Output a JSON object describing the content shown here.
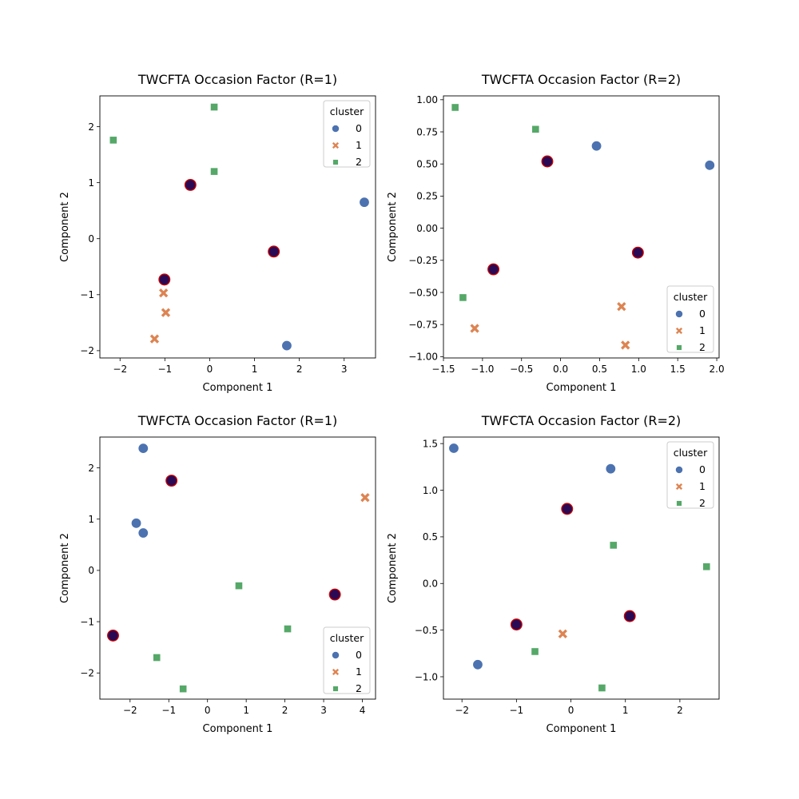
{
  "chart_data": [
    {
      "type": "scatter",
      "title": "TWCFTA Occasion Factor (R=1)",
      "xlabel": "Component 1",
      "ylabel": "Component 2",
      "xlim": [
        -2.45,
        3.7
      ],
      "ylim": [
        -2.13,
        2.55
      ],
      "xticks": [
        -2,
        -1,
        0,
        1,
        2,
        3
      ],
      "yticks": [
        -2,
        -1,
        0,
        1,
        2
      ],
      "xtick_labels": [
        "−2",
        "−1",
        "0",
        "1",
        "2",
        "3"
      ],
      "ytick_labels": [
        "−2",
        "−1",
        "0",
        "1",
        "2"
      ],
      "grid": false,
      "legend": {
        "title": "cluster",
        "placement": "upper right",
        "entries": [
          "0",
          "1",
          "2"
        ]
      },
      "series": [
        {
          "name": "0",
          "marker": "circle",
          "points": [
            [
              3.45,
              0.65
            ],
            [
              1.72,
              -1.91
            ]
          ]
        },
        {
          "name": "1",
          "marker": "x",
          "points": [
            [
              -1.03,
              -0.97
            ],
            [
              -0.98,
              -1.32
            ],
            [
              -1.23,
              -1.79
            ]
          ]
        },
        {
          "name": "2",
          "marker": "square",
          "points": [
            [
              -2.15,
              1.76
            ],
            [
              0.1,
              2.35
            ],
            [
              0.1,
              1.2
            ]
          ]
        }
      ],
      "highlighted": [
        [
          -0.43,
          0.96
        ],
        [
          1.43,
          -0.23
        ],
        [
          -1.01,
          -0.73
        ]
      ]
    },
    {
      "type": "scatter",
      "title": "TWCFTA Occasion Factor (R=2)",
      "xlabel": "Component 1",
      "ylabel": "Component 2",
      "xlim": [
        -1.5,
        2.03
      ],
      "ylim": [
        -1.01,
        1.03
      ],
      "xticks": [
        -1.5,
        -1.0,
        -0.5,
        0.0,
        0.5,
        1.0,
        1.5,
        2.0
      ],
      "yticks": [
        -1.0,
        -0.75,
        -0.5,
        -0.25,
        0.0,
        0.25,
        0.5,
        0.75,
        1.0
      ],
      "xtick_labels": [
        "−1.5",
        "−1.0",
        "−0.5",
        "0.0",
        "0.5",
        "1.0",
        "1.5",
        "2.0"
      ],
      "ytick_labels": [
        "−1.00",
        "−0.75",
        "−0.50",
        "−0.25",
        "0.00",
        "0.25",
        "0.50",
        "0.75",
        "1.00"
      ],
      "grid": false,
      "legend": {
        "title": "cluster",
        "placement": "lower right",
        "entries": [
          "0",
          "1",
          "2"
        ]
      },
      "series": [
        {
          "name": "0",
          "marker": "circle",
          "points": [
            [
              0.46,
              0.64
            ],
            [
              1.91,
              0.49
            ]
          ]
        },
        {
          "name": "1",
          "marker": "x",
          "points": [
            [
              0.78,
              -0.61
            ],
            [
              -1.1,
              -0.78
            ],
            [
              0.83,
              -0.91
            ]
          ]
        },
        {
          "name": "2",
          "marker": "square",
          "points": [
            [
              -1.35,
              0.94
            ],
            [
              -0.32,
              0.77
            ],
            [
              -1.25,
              -0.54
            ]
          ]
        }
      ],
      "highlighted": [
        [
          -0.17,
          0.52
        ],
        [
          0.99,
          -0.19
        ],
        [
          -0.86,
          -0.32
        ]
      ]
    },
    {
      "type": "scatter",
      "title": "TWFCTA Occasion Factor (R=1)",
      "xlabel": "Component 1",
      "ylabel": "Component 2",
      "xlim": [
        -2.78,
        4.34
      ],
      "ylim": [
        -2.51,
        2.6
      ],
      "xticks": [
        -2,
        -1,
        0,
        1,
        2,
        3,
        4
      ],
      "yticks": [
        -2,
        -1,
        0,
        1,
        2
      ],
      "xtick_labels": [
        "−2",
        "−1",
        "0",
        "1",
        "2",
        "3",
        "4"
      ],
      "ytick_labels": [
        "−2",
        "−1",
        "0",
        "1",
        "2"
      ],
      "grid": false,
      "legend": {
        "title": "cluster",
        "placement": "lower right",
        "entries": [
          "0",
          "1",
          "2"
        ]
      },
      "series": [
        {
          "name": "0",
          "marker": "circle",
          "points": [
            [
              -1.66,
              2.38
            ],
            [
              -1.84,
              0.92
            ],
            [
              -1.66,
              0.73
            ]
          ]
        },
        {
          "name": "1",
          "marker": "x",
          "points": [
            [
              4.07,
              1.42
            ]
          ]
        },
        {
          "name": "2",
          "marker": "square",
          "points": [
            [
              0.81,
              -0.3
            ],
            [
              2.07,
              -1.14
            ],
            [
              -1.31,
              -1.7
            ],
            [
              -0.63,
              -2.31
            ]
          ]
        }
      ],
      "highlighted": [
        [
          -0.93,
          1.75
        ],
        [
          3.29,
          -0.47
        ],
        [
          -2.44,
          -1.27
        ]
      ]
    },
    {
      "type": "scatter",
      "title": "TWFCTA Occasion Factor (R=2)",
      "xlabel": "Component 1",
      "ylabel": "Component 2",
      "xlim": [
        -2.34,
        2.72
      ],
      "ylim": [
        -1.24,
        1.57
      ],
      "xticks": [
        -2,
        -1,
        0,
        1,
        2
      ],
      "yticks": [
        -1.0,
        -0.5,
        0.0,
        0.5,
        1.0,
        1.5
      ],
      "xtick_labels": [
        "−2",
        "−1",
        "0",
        "1",
        "2"
      ],
      "ytick_labels": [
        "−1.0",
        "−0.5",
        "0.0",
        "0.5",
        "1.0",
        "1.5"
      ],
      "grid": false,
      "legend": {
        "title": "cluster",
        "placement": "upper right",
        "entries": [
          "0",
          "1",
          "2"
        ]
      },
      "series": [
        {
          "name": "0",
          "marker": "circle",
          "points": [
            [
              -2.15,
              1.45
            ],
            [
              0.73,
              1.23
            ],
            [
              -1.71,
              -0.87
            ]
          ]
        },
        {
          "name": "1",
          "marker": "x",
          "points": [
            [
              -0.15,
              -0.54
            ]
          ]
        },
        {
          "name": "2",
          "marker": "square",
          "points": [
            [
              0.78,
              0.41
            ],
            [
              2.49,
              0.18
            ],
            [
              -0.66,
              -0.73
            ],
            [
              0.57,
              -1.12
            ]
          ]
        }
      ],
      "highlighted": [
        [
          -0.07,
          0.8
        ],
        [
          -1.0,
          -0.44
        ],
        [
          1.08,
          -0.35
        ]
      ]
    }
  ],
  "colors": {
    "cluster_0": "#4c72b0",
    "cluster_1": "#dd8452",
    "cluster_2": "#55a868",
    "highlight_fill": "#2a0a55",
    "highlight_edge": "#cc0000"
  }
}
